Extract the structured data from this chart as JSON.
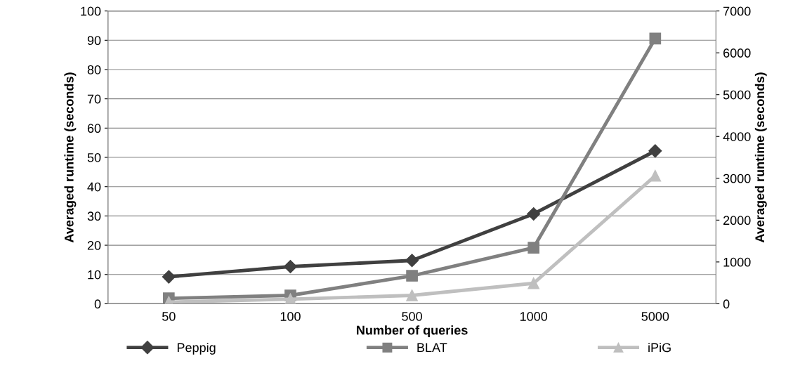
{
  "chart_data": {
    "type": "line",
    "xlabel": "Number of queries",
    "ylabel": "Averaged runtime (seconds)",
    "y2label": "Averaged runtime (seconds)",
    "categories": [
      "50",
      "100",
      "500",
      "1000",
      "5000"
    ],
    "series": [
      {
        "name": "Peppig",
        "color": "#404040",
        "marker": "diamond",
        "values": [
          9.2,
          12.7,
          14.8,
          30.7,
          52.2
        ]
      },
      {
        "name": "BLAT",
        "color": "#808080",
        "marker": "square",
        "axis": "y2",
        "values": [
          130,
          200,
          670,
          1340,
          6340
        ]
      },
      {
        "name": "iPiG",
        "color": "#bfbfbf",
        "marker": "triangle",
        "axis": "y2",
        "values": [
          40,
          110,
          200,
          490,
          3060
        ]
      }
    ],
    "ylim": [
      0,
      100
    ],
    "yticks": [
      0,
      10,
      20,
      30,
      40,
      50,
      60,
      70,
      80,
      90,
      100
    ],
    "y2lim": [
      0,
      7000
    ],
    "y2ticks": [
      0,
      1000,
      2000,
      3000,
      4000,
      5000,
      6000,
      7000
    ],
    "grid": "y",
    "legend": "bottom",
    "line_style": "solid"
  }
}
